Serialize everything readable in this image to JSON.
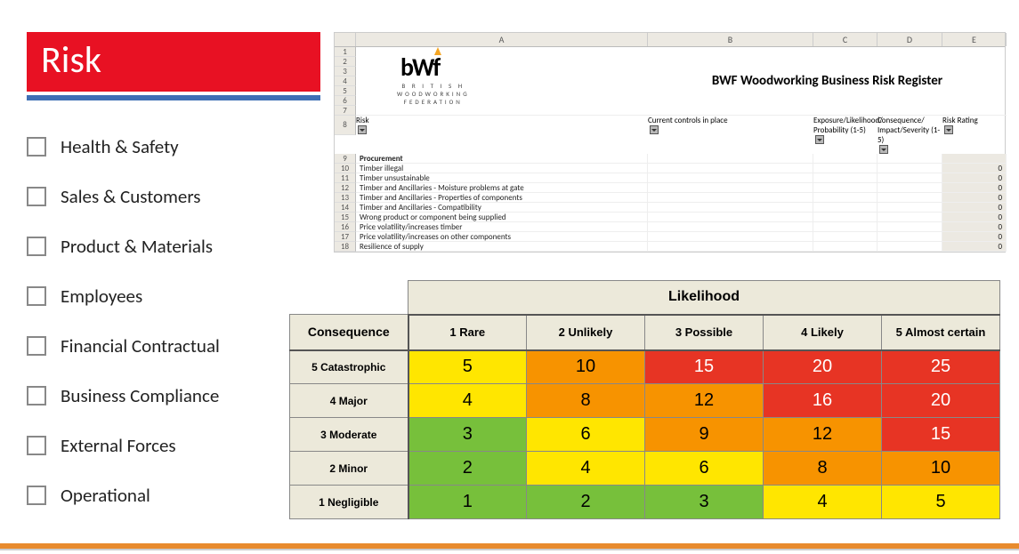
{
  "title": "Risk",
  "checklist": [
    "Health & Safety",
    "Sales & Customers",
    "Product & Materials",
    "Employees",
    "Financial Contractual",
    "Business Compliance",
    "External Forces",
    "Operational"
  ],
  "spreadsheet": {
    "logo_main": "bWf",
    "logo_sub1": "B R I T I S H",
    "logo_sub2": "WOODWORKING",
    "logo_sub3": "FEDERATION",
    "title": "BWF Woodworking Business Risk Register",
    "col_letters": [
      "A",
      "B",
      "C",
      "D",
      "E"
    ],
    "headers": [
      "Risk",
      "Current controls in place",
      "Exposure/Likelihood/ Probability (1-5)",
      "Consequence/ Impact/Severity (1-5)",
      "Risk Rating"
    ],
    "rows": [
      {
        "n": 9,
        "a": "Procurement",
        "bold": true,
        "e": ""
      },
      {
        "n": 10,
        "a": "Timber illegal",
        "e": "0"
      },
      {
        "n": 11,
        "a": "Timber unsustainable",
        "e": "0"
      },
      {
        "n": 12,
        "a": "Timber and Ancillaries - Moisture problems at gate",
        "e": "0"
      },
      {
        "n": 13,
        "a": "Timber and Ancillaries - Properties of components",
        "e": "0"
      },
      {
        "n": 14,
        "a": "Timber and Ancillaries  - Compatibility",
        "e": "0"
      },
      {
        "n": 15,
        "a": "Wrong product or component being supplied",
        "e": "0"
      },
      {
        "n": 16,
        "a": "Price volatility/increases timber",
        "e": "0"
      },
      {
        "n": 17,
        "a": "Price volatility/increases on other components",
        "e": "0"
      },
      {
        "n": 18,
        "a": "Resilience of supply",
        "e": "0"
      }
    ]
  },
  "matrix": {
    "likelihood_label": "Likelihood",
    "consequence_label": "Consequence",
    "col_headers": [
      "1 Rare",
      "2 Unlikely",
      "3 Possible",
      "4 Likely",
      "5 Almost certain"
    ],
    "row_headers": [
      "5 Catastrophic",
      "4 Major",
      "3 Moderate",
      "2 Minor",
      "1 Negligible"
    ],
    "colors": {
      "green": "#77c03b",
      "yellow": "#ffe600",
      "orange": "#f79300",
      "red": "#e73424"
    },
    "cells": [
      [
        {
          "v": 5,
          "c": "yellow"
        },
        {
          "v": 10,
          "c": "orange"
        },
        {
          "v": 15,
          "c": "red",
          "w": true
        },
        {
          "v": 20,
          "c": "red",
          "w": true
        },
        {
          "v": 25,
          "c": "red",
          "w": true
        }
      ],
      [
        {
          "v": 4,
          "c": "yellow"
        },
        {
          "v": 8,
          "c": "orange"
        },
        {
          "v": 12,
          "c": "orange"
        },
        {
          "v": 16,
          "c": "red",
          "w": true
        },
        {
          "v": 20,
          "c": "red",
          "w": true
        }
      ],
      [
        {
          "v": 3,
          "c": "green"
        },
        {
          "v": 6,
          "c": "yellow"
        },
        {
          "v": 9,
          "c": "orange"
        },
        {
          "v": 12,
          "c": "orange"
        },
        {
          "v": 15,
          "c": "red",
          "w": true
        }
      ],
      [
        {
          "v": 2,
          "c": "green"
        },
        {
          "v": 4,
          "c": "yellow"
        },
        {
          "v": 6,
          "c": "yellow"
        },
        {
          "v": 8,
          "c": "orange"
        },
        {
          "v": 10,
          "c": "orange"
        }
      ],
      [
        {
          "v": 1,
          "c": "green"
        },
        {
          "v": 2,
          "c": "green"
        },
        {
          "v": 3,
          "c": "green"
        },
        {
          "v": 4,
          "c": "yellow"
        },
        {
          "v": 5,
          "c": "yellow"
        }
      ]
    ]
  }
}
